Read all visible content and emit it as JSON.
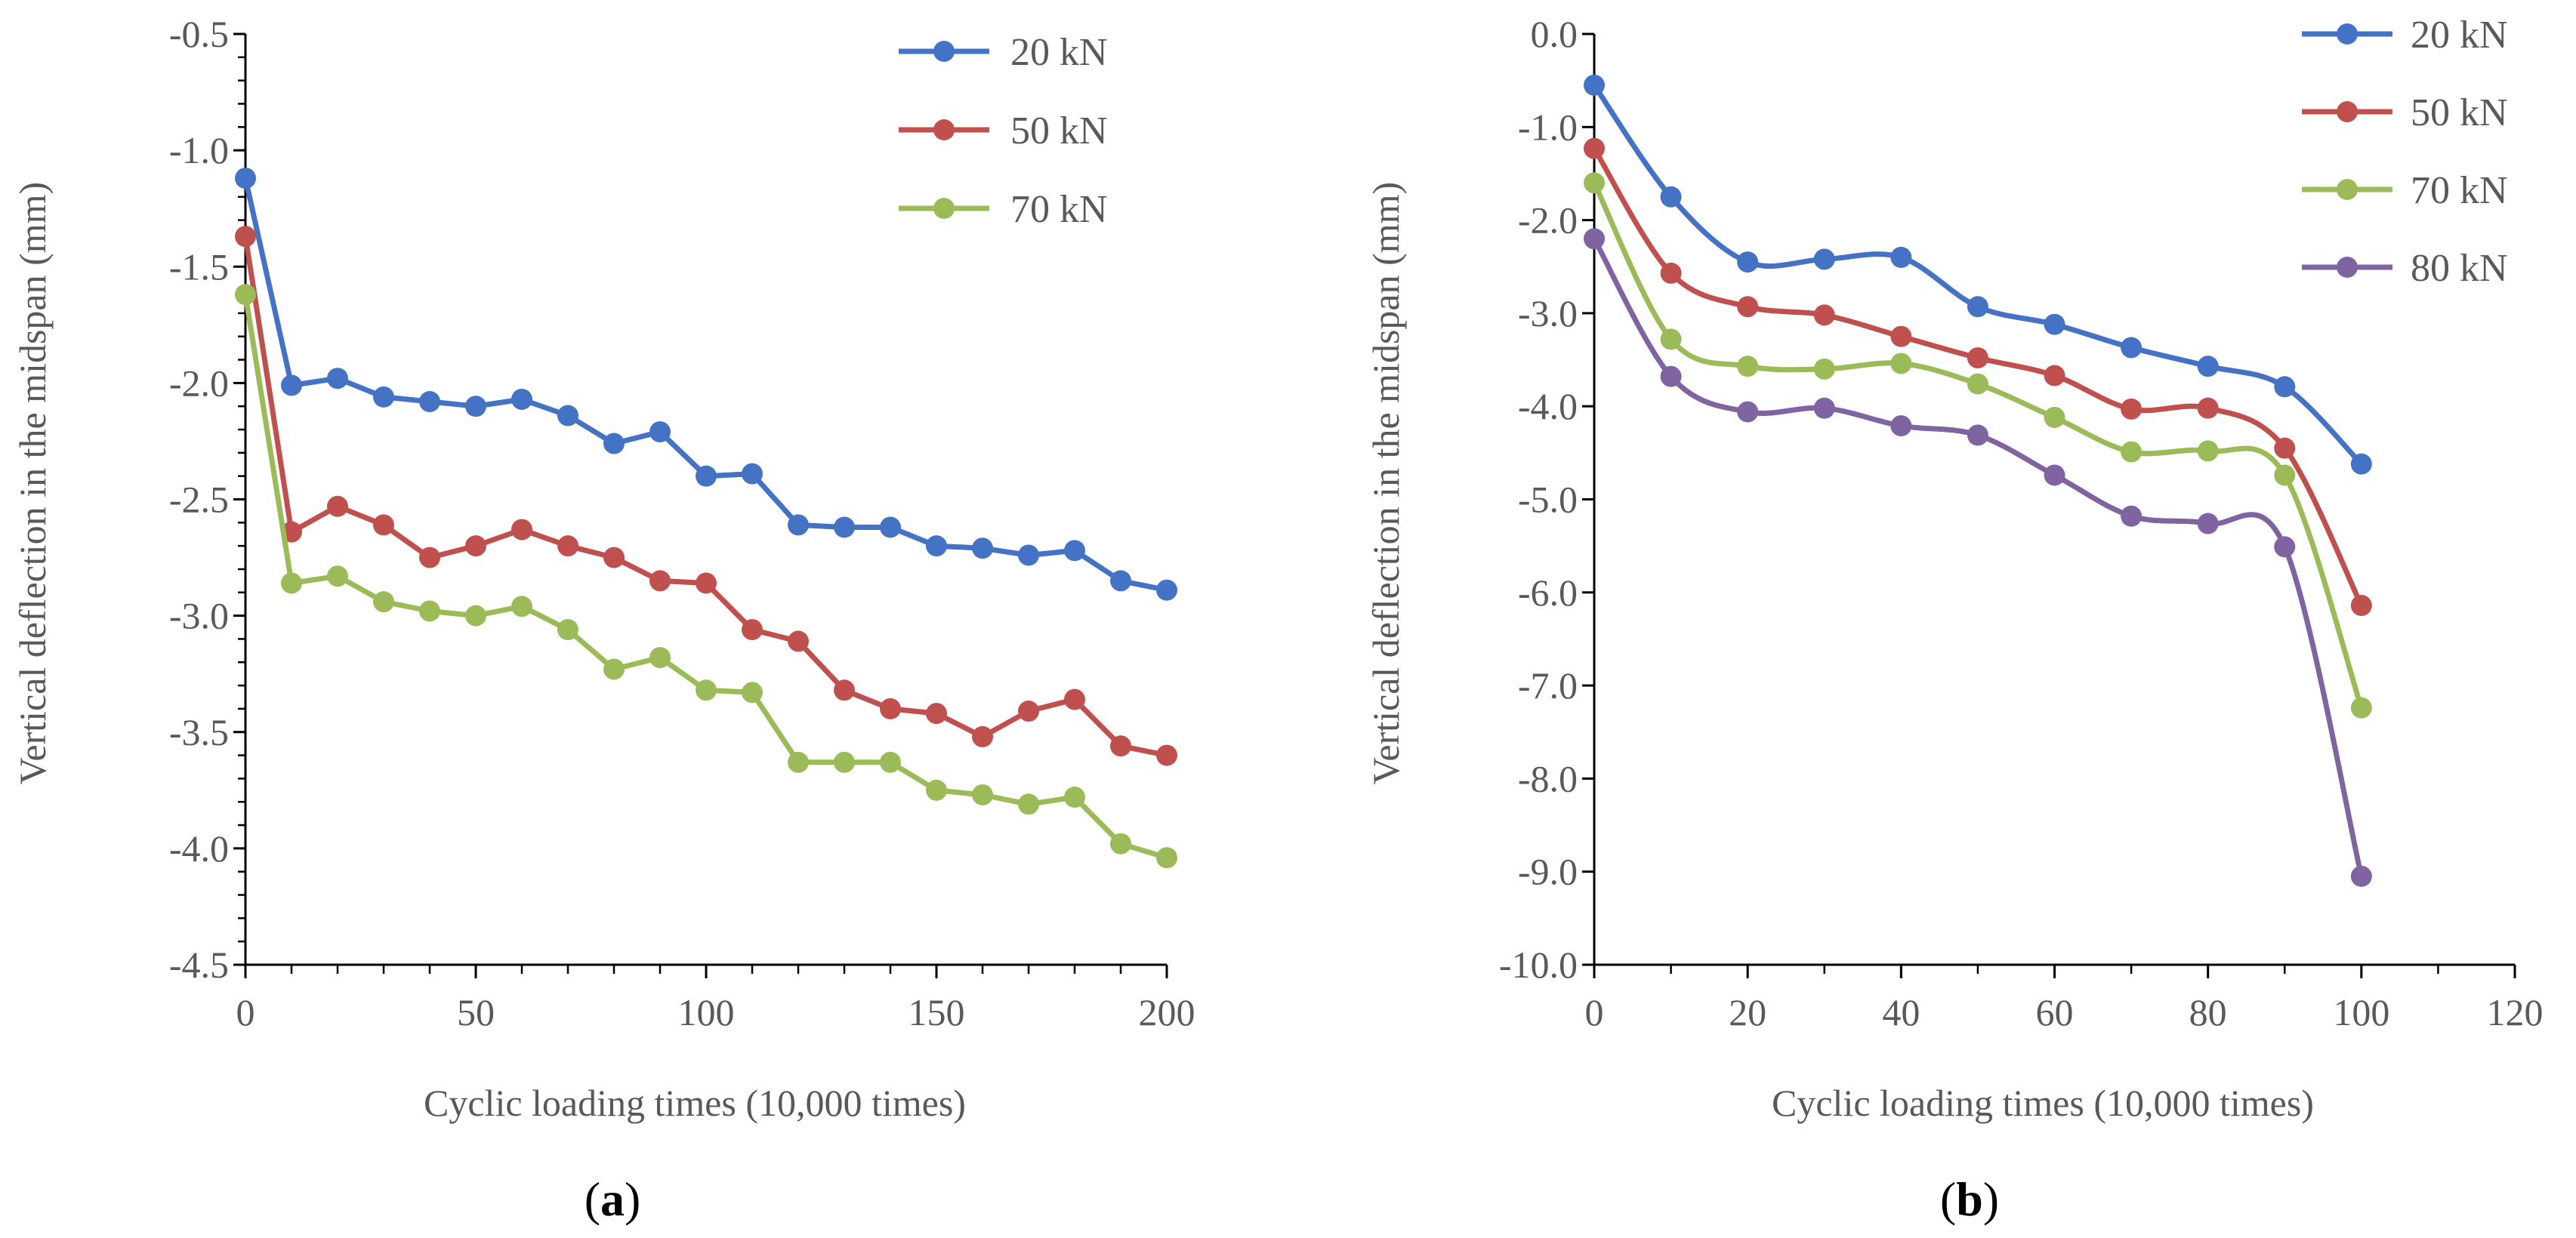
{
  "chart_data": [
    {
      "type": "line",
      "panel": "a",
      "panel_label": {
        "open": "(",
        "letter": "a",
        "close": ")"
      },
      "title": "",
      "xlabel": "Cyclic loading times (10,000 times)",
      "ylabel": "Vertical deflection in the midspan (mm)",
      "xlim": [
        0,
        200
      ],
      "ylim": [
        -4.5,
        -0.5
      ],
      "xticks": [
        0,
        50,
        100,
        150,
        200
      ],
      "xtick_labels": [
        "0",
        "50",
        "100",
        "150",
        "200"
      ],
      "yticks": [
        -0.5,
        -1.0,
        -1.5,
        -2.0,
        -2.5,
        -3.0,
        -3.5,
        -4.0,
        -4.5
      ],
      "ytick_labels": [
        "-0.5",
        "-1.0",
        "-1.5",
        "-2.0",
        "-2.5",
        "-3.0",
        "-3.5",
        "-4.0",
        "-4.5"
      ],
      "x_minor_step": 10,
      "y_minor_step": 0.1,
      "grid": false,
      "legend_position": "top-right",
      "smooth": false,
      "x": [
        0,
        10,
        20,
        30,
        40,
        50,
        60,
        70,
        80,
        90,
        100,
        110,
        120,
        130,
        140,
        150,
        160,
        170,
        180,
        190,
        200
      ],
      "series": [
        {
          "name": "20 kN",
          "color": "#4472C4",
          "values": [
            -1.12,
            -2.01,
            -1.98,
            -2.06,
            -2.08,
            -2.1,
            -2.07,
            -2.14,
            -2.26,
            -2.21,
            -2.4,
            -2.39,
            -2.61,
            -2.62,
            -2.62,
            -2.7,
            -2.71,
            -2.74,
            -2.72,
            -2.85,
            -2.89
          ]
        },
        {
          "name": "50 kN",
          "color": "#C0504D",
          "values": [
            -1.37,
            -2.64,
            -2.53,
            -2.61,
            -2.75,
            -2.7,
            -2.63,
            -2.7,
            -2.75,
            -2.85,
            -2.86,
            -3.06,
            -3.11,
            -3.32,
            -3.4,
            -3.42,
            -3.52,
            -3.41,
            -3.36,
            -3.56,
            -3.6
          ]
        },
        {
          "name": "70 kN",
          "color": "#9BBB59",
          "values": [
            -1.62,
            -2.86,
            -2.83,
            -2.94,
            -2.98,
            -3.0,
            -2.96,
            -3.06,
            -3.23,
            -3.18,
            -3.32,
            -3.33,
            -3.63,
            -3.63,
            -3.63,
            -3.75,
            -3.77,
            -3.81,
            -3.78,
            -3.98,
            -4.04
          ]
        }
      ]
    },
    {
      "type": "line",
      "panel": "b",
      "panel_label": {
        "open": "(",
        "letter": "b",
        "close": ")"
      },
      "title": "",
      "xlabel": "Cyclic loading times (10,000 times)",
      "ylabel": "Vertical deflection in the midspan (mm)",
      "xlim": [
        0,
        120
      ],
      "ylim": [
        -10.0,
        0.0
      ],
      "xticks": [
        0,
        20,
        40,
        60,
        80,
        100,
        120
      ],
      "xtick_labels": [
        "0",
        "20",
        "40",
        "60",
        "80",
        "100",
        "120"
      ],
      "yticks": [
        0.0,
        -1.0,
        -2.0,
        -3.0,
        -4.0,
        -5.0,
        -6.0,
        -7.0,
        -8.0,
        -9.0,
        -10.0
      ],
      "ytick_labels": [
        "0.0",
        "-1.0",
        "-2.0",
        "-3.0",
        "-4.0",
        "-5.0",
        "-6.0",
        "-7.0",
        "-8.0",
        "-9.0",
        "-10.0"
      ],
      "x_minor_step": 10,
      "y_minor_step": null,
      "grid": false,
      "legend_position": "top-right",
      "smooth": true,
      "x": [
        0,
        10,
        20,
        30,
        40,
        50,
        60,
        70,
        80,
        90,
        100
      ],
      "series": [
        {
          "name": "20 kN",
          "color": "#4472C4",
          "values": [
            -0.55,
            -1.75,
            -2.45,
            -2.42,
            -2.4,
            -2.93,
            -3.12,
            -3.37,
            -3.57,
            -3.79,
            -4.62
          ]
        },
        {
          "name": "50 kN",
          "color": "#C0504D",
          "values": [
            -1.23,
            -2.57,
            -2.93,
            -3.02,
            -3.25,
            -3.48,
            -3.67,
            -4.03,
            -4.02,
            -4.45,
            -6.14
          ]
        },
        {
          "name": "70 kN",
          "color": "#9BBB59",
          "values": [
            -1.6,
            -3.28,
            -3.57,
            -3.6,
            -3.54,
            -3.76,
            -4.12,
            -4.49,
            -4.48,
            -4.74,
            -7.24
          ]
        },
        {
          "name": "80 kN",
          "color": "#8064A2",
          "values": [
            -2.2,
            -3.68,
            -4.06,
            -4.02,
            -4.21,
            -4.31,
            -4.74,
            -5.18,
            -5.26,
            -5.51,
            -9.05
          ]
        }
      ]
    }
  ]
}
